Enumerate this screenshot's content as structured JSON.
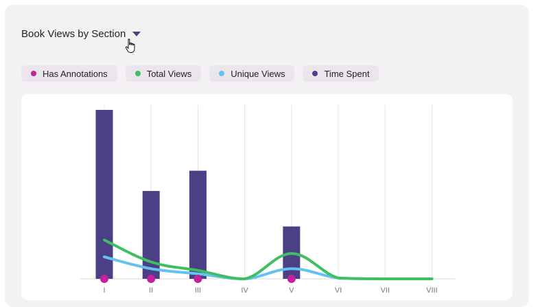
{
  "header": {
    "title": "Book Views by Section"
  },
  "icons": {
    "dropdown": "caret-down-icon",
    "cursor": "hand-pointer-icon"
  },
  "legend": [
    {
      "label": "Has Annotations",
      "color": "#c2219b"
    },
    {
      "label": "Total Views",
      "color": "#3fbf5f"
    },
    {
      "label": "Unique Views",
      "color": "#63c3f0"
    },
    {
      "label": "Time Spent",
      "color": "#4b3f86"
    }
  ],
  "chart_data": {
    "type": "bar",
    "categories": [
      "I",
      "II",
      "III",
      "IV",
      "V",
      "VI",
      "VII",
      "VIII"
    ],
    "ylim": [
      0,
      100
    ],
    "grid": "vertical",
    "series": [
      {
        "name": "Time Spent",
        "type": "bar",
        "values": [
          100,
          52,
          64,
          0,
          31,
          0,
          0,
          0
        ]
      },
      {
        "name": "Total Views",
        "type": "line",
        "values": [
          23,
          10,
          5,
          0,
          15,
          0.5,
          0,
          0
        ]
      },
      {
        "name": "Unique Views",
        "type": "line",
        "values": [
          13,
          6,
          3,
          0,
          6,
          0.5,
          0,
          0
        ]
      },
      {
        "name": "Has Annotations",
        "type": "marker",
        "values": [
          true,
          true,
          true,
          false,
          true,
          false,
          false,
          false
        ]
      }
    ]
  }
}
